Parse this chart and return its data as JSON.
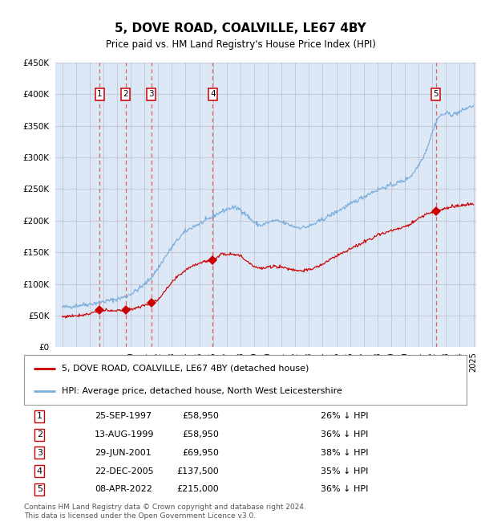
{
  "title": "5, DOVE ROAD, COALVILLE, LE67 4BY",
  "subtitle": "Price paid vs. HM Land Registry's House Price Index (HPI)",
  "ylim": [
    0,
    450000
  ],
  "yticks": [
    0,
    50000,
    100000,
    150000,
    200000,
    250000,
    300000,
    350000,
    400000,
    450000
  ],
  "xlim_start": 1994.5,
  "xlim_end": 2025.2,
  "hpi_color": "#7aaddb",
  "price_color": "#cc0000",
  "grid_color": "#bbbbcc",
  "background_color": "#dce8f5",
  "sale_dates": [
    1997.73,
    1999.62,
    2001.49,
    2005.98,
    2022.27
  ],
  "sale_prices": [
    58950,
    58950,
    69950,
    137500,
    215000
  ],
  "sale_labels": [
    "1",
    "2",
    "3",
    "4",
    "5"
  ],
  "table_rows": [
    [
      "1",
      "25-SEP-1997",
      "£58,950",
      "26% ↓ HPI"
    ],
    [
      "2",
      "13-AUG-1999",
      "£58,950",
      "36% ↓ HPI"
    ],
    [
      "3",
      "29-JUN-2001",
      "£69,950",
      "38% ↓ HPI"
    ],
    [
      "4",
      "22-DEC-2005",
      "£137,500",
      "35% ↓ HPI"
    ],
    [
      "5",
      "08-APR-2022",
      "£215,000",
      "36% ↓ HPI"
    ]
  ],
  "legend_line1": "5, DOVE ROAD, COALVILLE, LE67 4BY (detached house)",
  "legend_line2": "HPI: Average price, detached house, North West Leicestershire",
  "footer": "Contains HM Land Registry data © Crown copyright and database right 2024.\nThis data is licensed under the Open Government Licence v3.0.",
  "dashed_line_color": "#e06060",
  "label_box_color": "#cc0000",
  "hpi_anchors": [
    [
      1995.0,
      63000
    ],
    [
      1995.5,
      64000
    ],
    [
      1996.0,
      65500
    ],
    [
      1996.5,
      67000
    ],
    [
      1997.0,
      68000
    ],
    [
      1997.5,
      70000
    ],
    [
      1998.0,
      72000
    ],
    [
      1998.5,
      74000
    ],
    [
      1999.0,
      76000
    ],
    [
      1999.5,
      79000
    ],
    [
      2000.0,
      84000
    ],
    [
      2000.5,
      91000
    ],
    [
      2001.0,
      99000
    ],
    [
      2001.5,
      110000
    ],
    [
      2002.0,
      125000
    ],
    [
      2002.5,
      142000
    ],
    [
      2003.0,
      158000
    ],
    [
      2003.5,
      172000
    ],
    [
      2004.0,
      183000
    ],
    [
      2004.5,
      190000
    ],
    [
      2005.0,
      195000
    ],
    [
      2005.5,
      200000
    ],
    [
      2006.0,
      207000
    ],
    [
      2006.5,
      213000
    ],
    [
      2007.0,
      218000
    ],
    [
      2007.5,
      221000
    ],
    [
      2008.0,
      218000
    ],
    [
      2008.5,
      208000
    ],
    [
      2009.0,
      197000
    ],
    [
      2009.5,
      192000
    ],
    [
      2010.0,
      197000
    ],
    [
      2010.5,
      200000
    ],
    [
      2011.0,
      198000
    ],
    [
      2011.5,
      194000
    ],
    [
      2012.0,
      190000
    ],
    [
      2012.5,
      189000
    ],
    [
      2013.0,
      191000
    ],
    [
      2013.5,
      196000
    ],
    [
      2014.0,
      202000
    ],
    [
      2014.5,
      208000
    ],
    [
      2015.0,
      214000
    ],
    [
      2015.5,
      220000
    ],
    [
      2016.0,
      226000
    ],
    [
      2016.5,
      232000
    ],
    [
      2017.0,
      238000
    ],
    [
      2017.5,
      244000
    ],
    [
      2018.0,
      249000
    ],
    [
      2018.5,
      253000
    ],
    [
      2019.0,
      256000
    ],
    [
      2019.5,
      260000
    ],
    [
      2020.0,
      264000
    ],
    [
      2020.5,
      272000
    ],
    [
      2021.0,
      288000
    ],
    [
      2021.5,
      308000
    ],
    [
      2022.0,
      340000
    ],
    [
      2022.3,
      358000
    ],
    [
      2022.5,
      365000
    ],
    [
      2023.0,
      370000
    ],
    [
      2023.5,
      368000
    ],
    [
      2024.0,
      372000
    ],
    [
      2024.5,
      378000
    ],
    [
      2025.0,
      382000
    ]
  ],
  "price_anchors": [
    [
      1995.0,
      48000
    ],
    [
      1995.5,
      49000
    ],
    [
      1996.0,
      50000
    ],
    [
      1996.5,
      51000
    ],
    [
      1997.0,
      53000
    ],
    [
      1997.5,
      57000
    ],
    [
      1997.73,
      58950
    ],
    [
      1998.0,
      58000
    ],
    [
      1998.5,
      57000
    ],
    [
      1999.0,
      57500
    ],
    [
      1999.62,
      58950
    ],
    [
      2000.0,
      60000
    ],
    [
      2000.5,
      63000
    ],
    [
      2001.0,
      66000
    ],
    [
      2001.49,
      69950
    ],
    [
      2001.8,
      72000
    ],
    [
      2002.0,
      76000
    ],
    [
      2002.5,
      88000
    ],
    [
      2003.0,
      102000
    ],
    [
      2003.5,
      113000
    ],
    [
      2004.0,
      122000
    ],
    [
      2004.5,
      129000
    ],
    [
      2005.0,
      133000
    ],
    [
      2005.5,
      136000
    ],
    [
      2005.98,
      137500
    ],
    [
      2006.3,
      142000
    ],
    [
      2006.7,
      148000
    ],
    [
      2007.0,
      147000
    ],
    [
      2007.5,
      148000
    ],
    [
      2008.0,
      144000
    ],
    [
      2008.5,
      136000
    ],
    [
      2009.0,
      128000
    ],
    [
      2009.5,
      124000
    ],
    [
      2010.0,
      126000
    ],
    [
      2010.5,
      128000
    ],
    [
      2011.0,
      127000
    ],
    [
      2011.5,
      124000
    ],
    [
      2012.0,
      122000
    ],
    [
      2012.5,
      121000
    ],
    [
      2013.0,
      122000
    ],
    [
      2013.5,
      126000
    ],
    [
      2014.0,
      131000
    ],
    [
      2014.5,
      138000
    ],
    [
      2015.0,
      144000
    ],
    [
      2015.5,
      150000
    ],
    [
      2016.0,
      155000
    ],
    [
      2016.5,
      160000
    ],
    [
      2017.0,
      166000
    ],
    [
      2017.5,
      172000
    ],
    [
      2018.0,
      177000
    ],
    [
      2018.5,
      181000
    ],
    [
      2019.0,
      184000
    ],
    [
      2019.5,
      187000
    ],
    [
      2020.0,
      190000
    ],
    [
      2020.5,
      196000
    ],
    [
      2021.0,
      204000
    ],
    [
      2021.5,
      210000
    ],
    [
      2022.0,
      213000
    ],
    [
      2022.27,
      215000
    ],
    [
      2022.5,
      217000
    ],
    [
      2023.0,
      220000
    ],
    [
      2023.5,
      222000
    ],
    [
      2024.0,
      224000
    ],
    [
      2024.5,
      225000
    ],
    [
      2025.0,
      226000
    ]
  ]
}
